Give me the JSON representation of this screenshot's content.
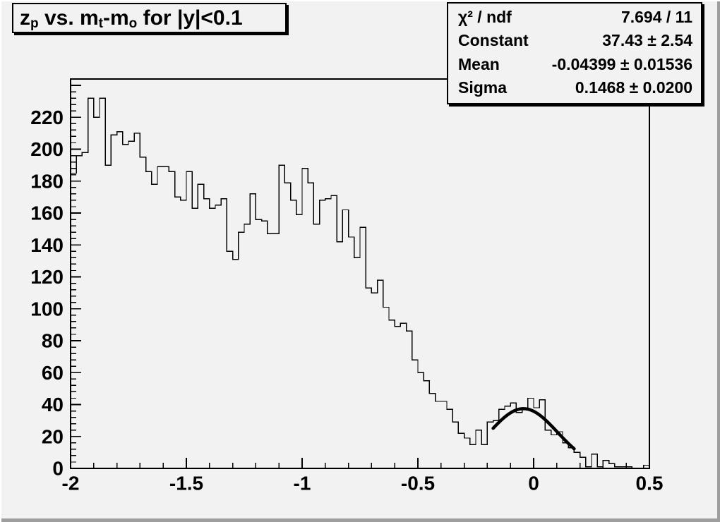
{
  "canvas": {
    "background": "#f2f2f2",
    "bevel_light": "#ffffff",
    "bevel_dark": "#9e9e9e",
    "line_color": "#000000"
  },
  "title_pave": {
    "text": "z_p vs. m_t-m_o for |y|<0.1",
    "segments": [
      {
        "text": "z",
        "sub": false
      },
      {
        "text": "p",
        "sub": true
      },
      {
        "text": " vs. m",
        "sub": false
      },
      {
        "text": "t",
        "sub": true
      },
      {
        "text": "-m",
        "sub": false
      },
      {
        "text": "o",
        "sub": true
      },
      {
        "text": " for |y|<0.1",
        "sub": false
      }
    ]
  },
  "stats_pave": {
    "rows": [
      {
        "label": "χ² / ndf",
        "value": "7.694 / 11"
      },
      {
        "label": "Constant",
        "value": "37.43 ± 2.54"
      },
      {
        "label": "Mean",
        "value": "-0.04399 ± 0.01536"
      },
      {
        "label": "Sigma",
        "value": "0.1468 ± 0.0200"
      }
    ]
  },
  "chart_data": {
    "type": "bar",
    "subtype": "step-histogram",
    "title": "z_p vs. m_t-m_o for |y|<0.1",
    "xlabel": "",
    "ylabel": "",
    "x_min": -2.0,
    "x_max": 0.5,
    "bin_width": 0.025,
    "n_bins": 100,
    "y_min": 0,
    "y_max": 244,
    "grid": false,
    "x_major_ticks": [
      -2,
      -1.5,
      -1,
      -0.5,
      0,
      0.5
    ],
    "x_tick_labels": [
      "-2",
      "-1.5",
      "-1",
      "-0.5",
      "0",
      "0.5"
    ],
    "x_minor_step": 0.1,
    "y_major_ticks": [
      0,
      20,
      40,
      60,
      80,
      100,
      120,
      140,
      160,
      180,
      200,
      220,
      240
    ],
    "y_tick_labels": [
      "0",
      "20",
      "40",
      "60",
      "80",
      "100",
      "120",
      "140",
      "160",
      "180",
      "200",
      "220"
    ],
    "y_minor_step": 4,
    "bins": [
      185,
      196,
      198,
      232,
      220,
      232,
      190,
      209,
      211,
      203,
      205,
      210,
      195,
      186,
      178,
      189,
      189,
      186,
      170,
      168,
      186,
      163,
      178,
      169,
      163,
      165,
      169,
      136,
      131,
      148,
      153,
      172,
      156,
      155,
      147,
      147,
      190,
      179,
      168,
      159,
      188,
      179,
      153,
      168,
      169,
      171,
      142,
      162,
      145,
      132,
      151,
      113,
      110,
      118,
      101,
      93,
      89,
      91,
      86,
      68,
      60,
      55,
      47,
      42,
      42,
      37,
      29,
      22,
      19,
      15,
      24,
      15,
      29,
      30,
      37,
      39,
      41,
      35,
      37,
      44,
      38,
      43,
      24,
      21,
      23,
      16,
      13,
      10,
      7,
      1,
      9,
      1,
      5,
      3,
      1,
      1,
      1,
      0,
      0,
      2
    ],
    "fit": {
      "type": "gaussian",
      "constant": 37.43,
      "mean": -0.04399,
      "sigma": 0.1468,
      "chi2": 7.694,
      "ndf": 11,
      "range": [
        -0.175,
        0.175
      ],
      "line_width": 4.5,
      "color": "#000000"
    },
    "histogram_color": "#000000",
    "legend_position": "none"
  }
}
